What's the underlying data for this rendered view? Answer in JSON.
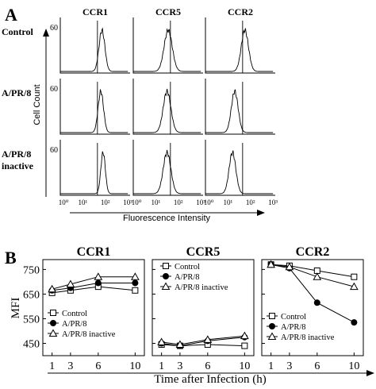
{
  "panel_a": {
    "letter": "A",
    "columns": [
      "CCR1",
      "CCR5",
      "CCR2"
    ],
    "rows": [
      {
        "label_lines": [
          "Control"
        ]
      },
      {
        "label_lines": [
          "A/PR/8"
        ]
      },
      {
        "label_lines": [
          "A/PR/8",
          "inactive"
        ]
      }
    ],
    "y_tick": "60",
    "y_axis_label": "Cell Count",
    "x_axis_label": "Fluorescence Intensity",
    "x_ticks": [
      "10⁰",
      "10¹",
      "10²",
      "10³"
    ]
  },
  "panel_b": {
    "letter": "B",
    "y_axis_label": "MFI",
    "x_axis_label": "Time after Infection (h)",
    "x_ticks": [
      "1",
      "3",
      "6",
      "10"
    ],
    "y_ticks": [
      "750",
      "650",
      "550",
      "450"
    ]
  },
  "chart_data": [
    {
      "type": "line",
      "title": "CCR1",
      "xlabel": "Time after Infection (h)",
      "ylabel": "MFI",
      "x": [
        1,
        3,
        6,
        10
      ],
      "xlim": [
        0,
        11
      ],
      "ylim": [
        400,
        790
      ],
      "legend_position": "lower-left",
      "series": [
        {
          "name": "Control",
          "marker": "square",
          "values": [
            655,
            665,
            680,
            665
          ]
        },
        {
          "name": "A/PR/8",
          "marker": "circle",
          "values": [
            665,
            675,
            695,
            695
          ]
        },
        {
          "name": "A/PR/8 inactive",
          "marker": "triangle",
          "values": [
            670,
            690,
            720,
            720
          ]
        }
      ]
    },
    {
      "type": "line",
      "title": "CCR5",
      "xlabel": "Time after Infection (h)",
      "ylabel": "MFI",
      "x": [
        1,
        3,
        6,
        10
      ],
      "xlim": [
        0,
        11
      ],
      "ylim": [
        400,
        790
      ],
      "legend_position": "top-right",
      "series": [
        {
          "name": "Control",
          "marker": "square",
          "values": [
            445,
            440,
            445,
            440
          ]
        },
        {
          "name": "A/PR/8",
          "marker": "circle",
          "values": [
            450,
            440,
            460,
            475
          ]
        },
        {
          "name": "A/PR/8 inactive",
          "marker": "triangle",
          "values": [
            455,
            445,
            465,
            480
          ]
        }
      ]
    },
    {
      "type": "line",
      "title": "CCR2",
      "xlabel": "Time after Infection (h)",
      "ylabel": "MFI",
      "x": [
        1,
        3,
        6,
        10
      ],
      "xlim": [
        0,
        11
      ],
      "ylim": [
        400,
        790
      ],
      "legend_position": "bottom-left",
      "series": [
        {
          "name": "Control",
          "marker": "square",
          "values": [
            770,
            765,
            745,
            720
          ]
        },
        {
          "name": "A/PR/8",
          "marker": "circle",
          "values": [
            770,
            755,
            615,
            535
          ]
        },
        {
          "name": "A/PR/8 inactive",
          "marker": "triangle",
          "values": [
            770,
            760,
            720,
            680
          ]
        }
      ]
    }
  ]
}
